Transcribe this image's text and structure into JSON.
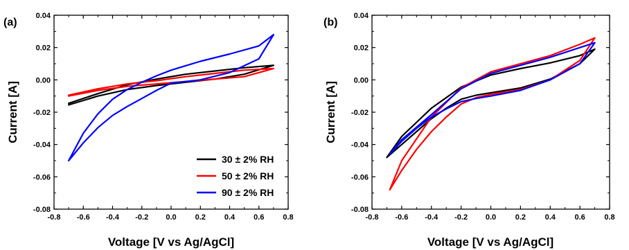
{
  "chart_data": [
    {
      "type": "line",
      "panel_label": "(a)",
      "xlabel": "Voltage [V vs Ag/AgCl]",
      "ylabel": "Current [A]",
      "xlim": [
        -0.8,
        0.8
      ],
      "ylim": [
        -0.08,
        0.04
      ],
      "x_ticks": [
        -0.8,
        -0.6,
        -0.4,
        -0.2,
        0.0,
        0.2,
        0.4,
        0.6,
        0.8
      ],
      "y_ticks": [
        -0.08,
        -0.06,
        -0.04,
        -0.02,
        0.0,
        0.02,
        0.04
      ],
      "x_tick_labels": [
        "-0.8",
        "-0.6",
        "-0.4",
        "-0.2",
        "0.0",
        "0.2",
        "0.4",
        "0.6",
        "0.8"
      ],
      "y_tick_labels": [
        "-0.08",
        "-0.06",
        "-0.04",
        "-0.02",
        "0.00",
        "0.02",
        "0.04"
      ],
      "grid": false,
      "legend": {
        "placement": "bottom-right",
        "entries": [
          "30 ± 2% RH",
          "50 ± 2% RH",
          "90 ± 2% RH"
        ]
      },
      "series": [
        {
          "name": "30 ± 2% RH",
          "color": "#000000",
          "x": [
            -0.7,
            -0.5,
            -0.3,
            -0.1,
            0.1,
            0.3,
            0.5,
            0.7,
            0.5,
            0.3,
            0.1,
            -0.1,
            -0.3,
            -0.5,
            -0.7
          ],
          "y": [
            -0.0155,
            -0.01,
            -0.006,
            -0.0035,
            -0.0015,
            0.0005,
            0.0035,
            0.009,
            0.0075,
            0.0055,
            0.0035,
            0.0005,
            -0.003,
            -0.0085,
            -0.0145
          ]
        },
        {
          "name": "50 ± 2% RH",
          "color": "#ff0000",
          "x": [
            -0.7,
            -0.5,
            -0.3,
            -0.1,
            0.1,
            0.3,
            0.5,
            0.7,
            0.5,
            0.3,
            0.1,
            -0.1,
            -0.3,
            -0.5,
            -0.7
          ],
          "y": [
            -0.01,
            -0.0065,
            -0.004,
            -0.0025,
            -0.001,
            0.0005,
            0.002,
            0.007,
            0.006,
            0.004,
            0.002,
            -0.0005,
            -0.0025,
            -0.0055,
            -0.0095
          ]
        },
        {
          "name": "90 ± 2% RH",
          "color": "#0000ff",
          "x": [
            -0.7,
            -0.6,
            -0.5,
            -0.4,
            -0.3,
            -0.2,
            -0.1,
            0.0,
            0.2,
            0.4,
            0.6,
            0.7,
            0.6,
            0.4,
            0.2,
            0.0,
            -0.1,
            -0.2,
            -0.3,
            -0.4,
            -0.5,
            -0.6,
            -0.7
          ],
          "y": [
            -0.05,
            -0.039,
            -0.0295,
            -0.022,
            -0.0165,
            -0.0115,
            -0.0065,
            -0.002,
            0.0,
            0.0045,
            0.013,
            0.028,
            0.021,
            0.016,
            0.0115,
            0.006,
            0.0025,
            -0.0015,
            -0.006,
            -0.012,
            -0.021,
            -0.033,
            -0.05
          ]
        }
      ]
    },
    {
      "type": "line",
      "panel_label": "(b)",
      "xlabel": "Voltage [V vs Ag/AgCl]",
      "ylabel": "Current [A]",
      "xlim": [
        -0.8,
        0.8
      ],
      "ylim": [
        -0.08,
        0.04
      ],
      "x_ticks": [
        -0.8,
        -0.6,
        -0.4,
        -0.2,
        0.0,
        0.2,
        0.4,
        0.6,
        0.8
      ],
      "y_ticks": [
        -0.08,
        -0.06,
        -0.04,
        -0.02,
        0.0,
        0.02,
        0.04
      ],
      "x_tick_labels": [
        "-0.8",
        "-0.6",
        "-0.4",
        "-0.2",
        "0.0",
        "0.2",
        "0.4",
        "0.6",
        "0.8"
      ],
      "y_tick_labels": [
        "-0.08",
        "-0.06",
        "-0.04",
        "-0.02",
        "0.00",
        "0.02",
        "0.04"
      ],
      "grid": false,
      "series": [
        {
          "color": "#000000",
          "x": [
            -0.7,
            -0.6,
            -0.5,
            -0.4,
            -0.3,
            -0.2,
            -0.1,
            0.0,
            0.2,
            0.4,
            0.6,
            0.7,
            0.6,
            0.4,
            0.2,
            0.0,
            -0.2,
            -0.4,
            -0.6,
            -0.7
          ],
          "y": [
            -0.048,
            -0.04,
            -0.032,
            -0.024,
            -0.0175,
            -0.012,
            -0.0095,
            -0.008,
            -0.005,
            0.0005,
            0.01,
            0.019,
            0.015,
            0.0105,
            0.007,
            0.003,
            -0.0045,
            -0.0175,
            -0.035,
            -0.048
          ]
        },
        {
          "color": "#ff0000",
          "x": [
            -0.68,
            -0.6,
            -0.5,
            -0.4,
            -0.3,
            -0.2,
            -0.1,
            0.0,
            0.2,
            0.4,
            0.6,
            0.7,
            0.6,
            0.4,
            0.2,
            0.0,
            -0.2,
            -0.4,
            -0.6,
            -0.68
          ],
          "y": [
            -0.068,
            -0.056,
            -0.043,
            -0.032,
            -0.023,
            -0.015,
            -0.011,
            -0.009,
            -0.006,
            0.0,
            0.012,
            0.026,
            0.022,
            0.015,
            0.01,
            0.005,
            -0.005,
            -0.023,
            -0.05,
            -0.068
          ]
        },
        {
          "color": "#0000ff",
          "x": [
            -0.68,
            -0.6,
            -0.5,
            -0.4,
            -0.3,
            -0.2,
            -0.1,
            0.0,
            0.2,
            0.4,
            0.6,
            0.7,
            0.6,
            0.4,
            0.2,
            0.0,
            -0.2,
            -0.4,
            -0.6,
            -0.68
          ],
          "y": [
            -0.046,
            -0.038,
            -0.03,
            -0.023,
            -0.018,
            -0.0135,
            -0.0115,
            -0.01,
            -0.0065,
            0.0,
            0.01,
            0.023,
            0.02,
            0.014,
            0.009,
            0.004,
            -0.0055,
            -0.0215,
            -0.037,
            -0.046
          ]
        }
      ]
    }
  ]
}
